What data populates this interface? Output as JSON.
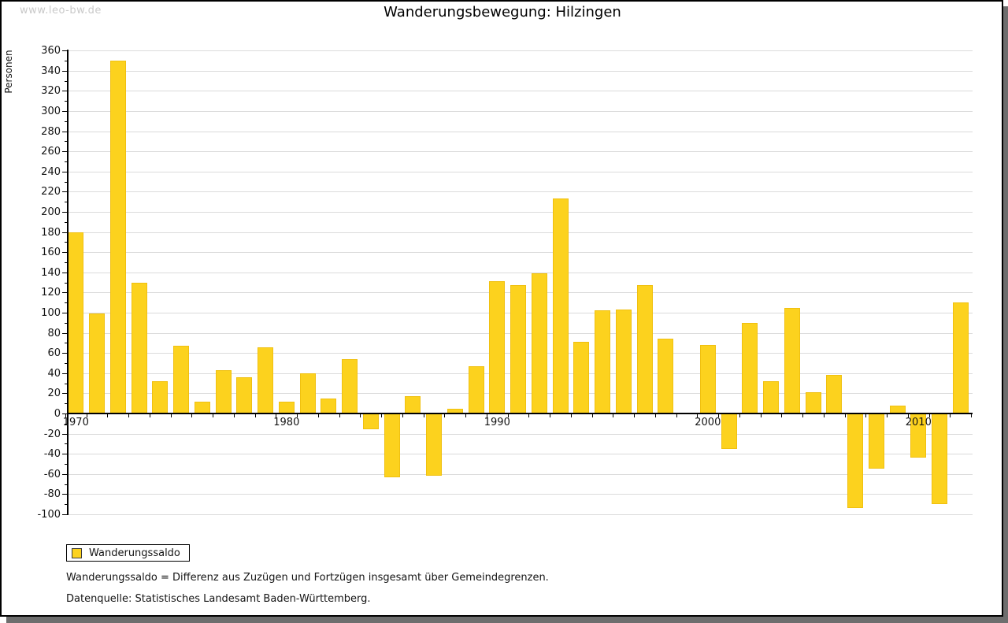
{
  "watermark": "www.leo-bw.de",
  "title": "Wanderungsbewegung: Hilzingen",
  "legend": {
    "label": "Wanderungssaldo"
  },
  "notes": {
    "definition": "Wanderungssaldo = Differenz aus Zuzügen und Fortzügen insgesamt über Gemeindegrenzen.",
    "source": "Datenquelle: Statistisches Landesamt Baden-Württemberg."
  },
  "colors": {
    "bar_fill": "#FCD21E",
    "bar_border": "#F0C010",
    "grid": "#DBDBDB",
    "axis": "#000000",
    "watermark": "#C9C9C9",
    "shadow": "#6E6E6E"
  },
  "chart_data": {
    "type": "bar",
    "title": "Wanderungsbewegung: Hilzingen",
    "ylabel": "Personen",
    "xlabel": "",
    "series_name": "Wanderungssaldo",
    "x": [
      1970,
      1971,
      1972,
      1973,
      1974,
      1975,
      1976,
      1977,
      1978,
      1979,
      1980,
      1981,
      1982,
      1983,
      1984,
      1985,
      1986,
      1987,
      1988,
      1989,
      1990,
      1991,
      1992,
      1993,
      1994,
      1995,
      1996,
      1997,
      1998,
      1999,
      2000,
      2001,
      2002,
      2003,
      2004,
      2005,
      2006,
      2007,
      2008,
      2009,
      2010,
      2011,
      2012
    ],
    "values": [
      180,
      99,
      350,
      130,
      32,
      67,
      12,
      43,
      36,
      66,
      12,
      40,
      15,
      54,
      -16,
      -63,
      17,
      -62,
      5,
      47,
      131,
      127,
      139,
      213,
      71,
      102,
      103,
      127,
      74,
      0,
      68,
      -35,
      90,
      32,
      105,
      21,
      38,
      -94,
      -55,
      8,
      -44,
      -90,
      110
    ],
    "ylim": [
      -100,
      360
    ],
    "ytick_step": 20,
    "ytick_minor_step": 10,
    "xticks_labeled": [
      1970,
      1980,
      1990,
      2000,
      2010
    ],
    "grid": true,
    "legend_position": "bottom-left"
  }
}
